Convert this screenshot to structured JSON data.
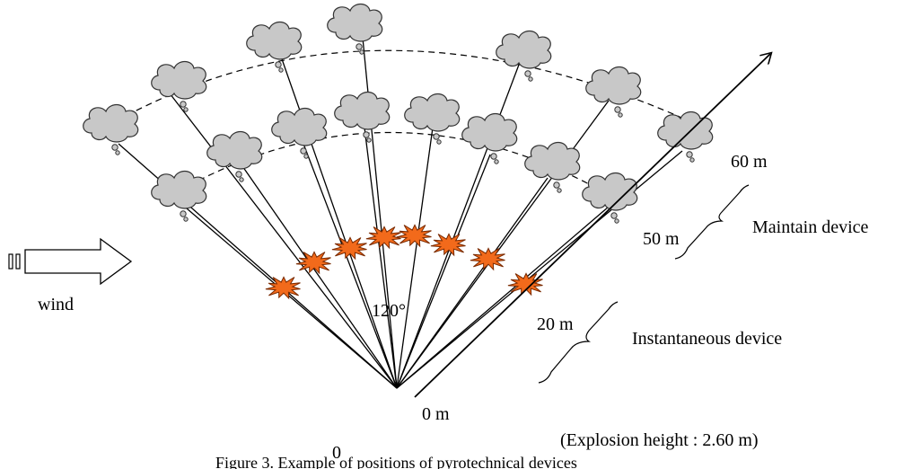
{
  "labels": {
    "wind": "wind",
    "angle": "120°",
    "zero_m": "0 m",
    "twenty_m": "20 m",
    "fifty_m": "50 m",
    "sixty_m": "60 m",
    "instantaneous": "Instantaneous device",
    "maintain": "Maintain device",
    "explosion_height": "(Explosion height : 2.60 m)",
    "stray_digit": "0",
    "caption": "Figure 3. Example of positions of pyrotechnical devices"
  },
  "colors": {
    "burst_fill": "#f26a1b",
    "burst_stroke": "#7a2a00",
    "cloud_fill": "#c8c8c8",
    "cloud_stroke": "#333333",
    "line": "#000000"
  }
}
